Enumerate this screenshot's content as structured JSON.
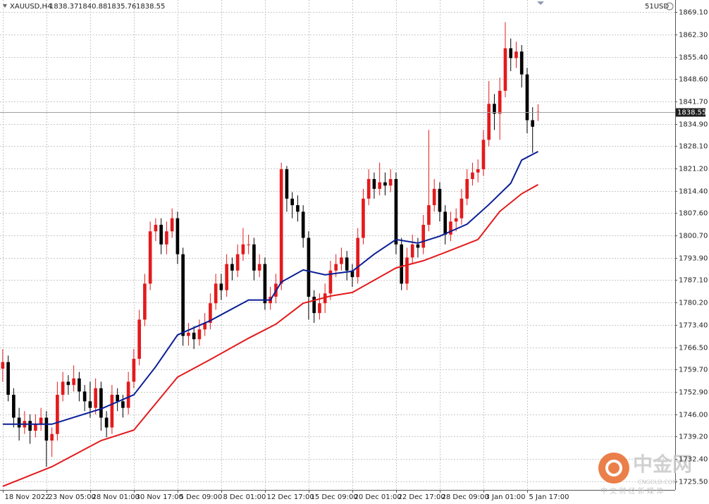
{
  "chart_data": {
    "type": "candlestick",
    "symbol": "XAUUSD,H4",
    "account_label": "51USD",
    "watermark": {
      "brand": "中金网",
      "site": "CNGOLD.COM",
      "slogan": "中 文 财 经 新 媒 体"
    },
    "up_color": "#e31a1c",
    "down_color": "#000000",
    "grid": true,
    "xlim": [
      -0.5,
      123.1
    ],
    "ylim": [
      1722.9,
      1872.77
    ],
    "xticks": [
      {
        "value": 0,
        "label": "18 Nov 2022"
      },
      {
        "value": 8,
        "label": "23 Nov 05:00"
      },
      {
        "value": 16,
        "label": "28 Nov 01:00"
      },
      {
        "value": 24,
        "label": "30 Nov 17:00"
      },
      {
        "value": 32,
        "label": "5 Dec 09:00"
      },
      {
        "value": 40,
        "label": "8 Dec 01:00"
      },
      {
        "value": 48,
        "label": "12 Dec 17:00"
      },
      {
        "value": 56,
        "label": "15 Dec 09:00"
      },
      {
        "value": 64,
        "label": "20 Dec 01:00"
      },
      {
        "value": 72,
        "label": "22 Dec 17:00"
      },
      {
        "value": 80,
        "label": "28 Dec 09:00"
      },
      {
        "value": 88,
        "label": "3 Jan 01:00"
      },
      {
        "value": 96,
        "label": "5 Jan 17:00"
      }
    ],
    "yticks": [
      {
        "value": 1869.1,
        "label": "1869.10"
      },
      {
        "value": 1862.3,
        "label": "1862.30"
      },
      {
        "value": 1855.4,
        "label": "1855.40"
      },
      {
        "value": 1848.6,
        "label": "1848.60"
      },
      {
        "value": 1841.7,
        "label": "1841.70"
      },
      {
        "value": 1834.9,
        "label": "1834.90"
      },
      {
        "value": 1828.1,
        "label": "1828.10"
      },
      {
        "value": 1821.2,
        "label": "1821.20"
      },
      {
        "value": 1814.4,
        "label": "1814.40"
      },
      {
        "value": 1807.6,
        "label": "1807.60"
      },
      {
        "value": 1800.7,
        "label": "1800.70"
      },
      {
        "value": 1793.9,
        "label": "1793.90"
      },
      {
        "value": 1787.1,
        "label": "1787.10"
      },
      {
        "value": 1780.2,
        "label": "1780.20"
      },
      {
        "value": 1773.4,
        "label": "1773.40"
      },
      {
        "value": 1766.5,
        "label": "1766.50"
      },
      {
        "value": 1759.7,
        "label": "1759.70"
      },
      {
        "value": 1752.9,
        "label": "1752.90"
      },
      {
        "value": 1746,
        "label": "1746.00"
      },
      {
        "value": 1739.2,
        "label": "1739.20"
      },
      {
        "value": 1732.4,
        "label": "1732.40"
      },
      {
        "value": 1725.5,
        "label": "1725.50"
      }
    ],
    "open": [
      1760,
      1762,
      1752,
      1745,
      1742,
      1744,
      1741,
      1743,
      1745,
      1738,
      1740,
      1752,
      1756,
      1755,
      1757,
      1753,
      1750,
      1748,
      1754,
      1745,
      1742,
      1752,
      1750,
      1748,
      1756,
      1763,
      1775,
      1786,
      1802,
      1804,
      1798,
      1802,
      1806,
      1795,
      1770,
      1771,
      1769,
      1772,
      1774,
      1780,
      1786,
      1784,
      1792,
      1790,
      1795,
      1798,
      1798,
      1790,
      1792,
      1780,
      1782,
      1786,
      1821,
      1812,
      1810,
      1808,
      1800,
      1782,
      1777,
      1780,
      1783,
      1790,
      1792,
      1794,
      1790,
      1788,
      1800,
      1812,
      1818,
      1815,
      1817,
      1816,
      1818,
      1798,
      1786,
      1794,
      1798,
      1797,
      1804,
      1810,
      1815,
      1808,
      1801,
      1805,
      1806,
      1812,
      1818,
      1820,
      1821,
      1830,
      1841,
      1838,
      1845,
      1858,
      1855,
      1857,
      1850,
      1836,
      1838.37
    ],
    "high": [
      1766,
      1764,
      1754,
      1748,
      1747,
      1746,
      1746,
      1748,
      1747,
      1742,
      1756,
      1759,
      1758,
      1761,
      1759,
      1755,
      1756,
      1757,
      1756,
      1747,
      1755,
      1754,
      1752,
      1759,
      1766,
      1778,
      1789,
      1805,
      1806,
      1806,
      1805,
      1809,
      1808,
      1797,
      1774,
      1773,
      1775,
      1777,
      1783,
      1789,
      1789,
      1795,
      1794,
      1798,
      1803,
      1801,
      1800,
      1795,
      1794,
      1785,
      1789,
      1823,
      1822,
      1814,
      1813,
      1810,
      1802,
      1784,
      1783,
      1786,
      1793,
      1795,
      1797,
      1796,
      1792,
      1803,
      1815,
      1821,
      1820,
      1823,
      1820,
      1821,
      1820,
      1800,
      1797,
      1801,
      1800,
      1807,
      1833,
      1818,
      1817,
      1810,
      1808,
      1809,
      1815,
      1821,
      1823,
      1824,
      1833,
      1848,
      1844,
      1849,
      1866,
      1861,
      1860,
      1859,
      1852,
      1840,
      1840.88
    ],
    "low": [
      1756,
      1750,
      1742,
      1738,
      1740,
      1737,
      1739,
      1741,
      1730,
      1733,
      1738,
      1750,
      1752,
      1753,
      1750,
      1747,
      1745,
      1746,
      1741,
      1739,
      1740,
      1747,
      1745,
      1746,
      1754,
      1761,
      1773,
      1784,
      1799,
      1795,
      1795,
      1800,
      1792,
      1767,
      1767,
      1766,
      1767,
      1770,
      1772,
      1778,
      1781,
      1782,
      1787,
      1788,
      1793,
      1795,
      1787,
      1788,
      1778,
      1778,
      1780,
      1784,
      1808,
      1806,
      1805,
      1797,
      1775,
      1774,
      1775,
      1777,
      1781,
      1788,
      1790,
      1787,
      1785,
      1786,
      1798,
      1810,
      1812,
      1813,
      1813,
      1814,
      1795,
      1784,
      1784,
      1792,
      1794,
      1795,
      1802,
      1808,
      1805,
      1798,
      1799,
      1802,
      1804,
      1810,
      1816,
      1817,
      1819,
      1828,
      1833,
      1830,
      1843,
      1851,
      1852,
      1846,
      1832,
      1826,
      1835.76
    ],
    "close": [
      1762,
      1752,
      1745,
      1742,
      1744,
      1741,
      1743,
      1745,
      1738,
      1740,
      1752,
      1756,
      1755,
      1757,
      1753,
      1750,
      1748,
      1754,
      1745,
      1742,
      1752,
      1750,
      1748,
      1756,
      1763,
      1775,
      1786,
      1802,
      1804,
      1798,
      1802,
      1806,
      1795,
      1770,
      1771,
      1769,
      1772,
      1774,
      1780,
      1786,
      1784,
      1792,
      1790,
      1795,
      1798,
      1798,
      1790,
      1792,
      1780,
      1782,
      1786,
      1821,
      1812,
      1810,
      1808,
      1800,
      1782,
      1777,
      1780,
      1783,
      1790,
      1792,
      1794,
      1790,
      1788,
      1800,
      1812,
      1818,
      1815,
      1817,
      1816,
      1818,
      1798,
      1786,
      1794,
      1798,
      1797,
      1804,
      1810,
      1815,
      1808,
      1801,
      1805,
      1806,
      1812,
      1818,
      1820,
      1821,
      1830,
      1841,
      1838,
      1845,
      1858,
      1855,
      1857,
      1850,
      1836,
      1834,
      1838.55
    ],
    "lines": [
      {
        "color": "#0a1e96",
        "x": [
          0,
          9,
          18,
          24,
          28,
          32,
          38,
          45,
          49,
          51,
          55,
          59,
          64,
          68,
          72,
          76,
          80,
          85,
          89,
          93,
          95,
          98
        ],
        "values": [
          1743,
          1743,
          1747.7,
          1752,
          1760.6,
          1770.3,
          1774.7,
          1781,
          1781,
          1786.5,
          1790.2,
          1788.7,
          1789.8,
          1795,
          1799.5,
          1798.4,
          1800.5,
          1804.2,
          1810.2,
          1816.7,
          1823.8,
          1826.4
        ]
      },
      {
        "color": "#e31a1c",
        "x": [
          0,
          9,
          18,
          24,
          32,
          38,
          45,
          50,
          55,
          60,
          64,
          72,
          77,
          82,
          87,
          91,
          95,
          98
        ],
        "values": [
          1724,
          1730,
          1738,
          1741.2,
          1757.4,
          1762.8,
          1769.3,
          1773.6,
          1780,
          1782.2,
          1783.3,
          1790.8,
          1793,
          1796.2,
          1799.5,
          1808.1,
          1813.5,
          1816.3
        ]
      }
    ]
  }
}
